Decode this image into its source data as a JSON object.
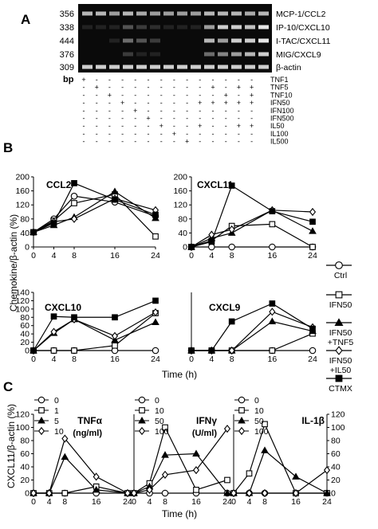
{
  "panelA": {
    "letter": "A",
    "bp_header": "bp",
    "rows": [
      {
        "bp": "356",
        "gene": "MCP-1/CCL2"
      },
      {
        "bp": "338",
        "gene": "IP-10/CXCL10"
      },
      {
        "bp": "444",
        "gene": "I-TAC/CXCL11"
      },
      {
        "bp": "376",
        "gene": "MIG/CXCL9"
      },
      {
        "bp": "309",
        "gene": "β-actin"
      }
    ],
    "treatments": [
      "TNF1",
      "TNF5",
      "TNF10",
      "IFN50",
      "IFN100",
      "IFN500",
      "IL50",
      "IL100",
      "IL500"
    ],
    "matrix": [
      [
        "+",
        "-",
        "-",
        "-",
        "-",
        "-",
        "-",
        "-",
        "-",
        "-",
        "-",
        "-",
        "-",
        "-"
      ],
      [
        "-",
        "+",
        "-",
        "-",
        "-",
        "-",
        "-",
        "-",
        "-",
        "-",
        "+",
        "-",
        "+",
        "+"
      ],
      [
        "-",
        "-",
        "+",
        "-",
        "-",
        "-",
        "-",
        "-",
        "-",
        "-",
        "-",
        "+",
        "-",
        "+"
      ],
      [
        "-",
        "-",
        "-",
        "+",
        "-",
        "-",
        "-",
        "-",
        "-",
        "+",
        "+",
        "+",
        "+",
        "+"
      ],
      [
        "-",
        "-",
        "-",
        "-",
        "+",
        "-",
        "-",
        "-",
        "-",
        "-",
        "-",
        "-",
        "-",
        "-"
      ],
      [
        "-",
        "-",
        "-",
        "-",
        "-",
        "+",
        "-",
        "-",
        "-",
        "-",
        "-",
        "-",
        "-",
        "-"
      ],
      [
        "-",
        "-",
        "-",
        "-",
        "-",
        "-",
        "+",
        "-",
        "-",
        "+",
        "-",
        "-",
        "+",
        "+"
      ],
      [
        "-",
        "-",
        "-",
        "-",
        "-",
        "-",
        "-",
        "+",
        "-",
        "-",
        "-",
        "-",
        "-",
        "-"
      ],
      [
        "-",
        "-",
        "-",
        "-",
        "-",
        "-",
        "-",
        "-",
        "+",
        "-",
        "-",
        "-",
        "-",
        "-"
      ]
    ]
  },
  "panelB": {
    "letter": "B",
    "ylabel": "Chemokine/β-actin (%)",
    "xlabel": "Time (h)",
    "legend": [
      {
        "label": "Ctrl",
        "marker": "circle"
      },
      {
        "label": "IFN50",
        "marker": "square"
      },
      {
        "label": "IFN50 +TNF5",
        "marker": "triangle"
      },
      {
        "label": "IFN50 +IL50",
        "marker": "diamond"
      },
      {
        "label": "CTMX",
        "marker": "filledsquare"
      }
    ]
  },
  "panelC": {
    "letter": "C",
    "ylabel": "CXCL11/β-actin (%)",
    "xlabel": "Time (h)"
  },
  "chart_data": [
    {
      "type": "line",
      "panel": "B",
      "title": "CCL2",
      "x": [
        0,
        4,
        8,
        16,
        24
      ],
      "ylim": [
        0,
        200
      ],
      "yticks": [
        0,
        40,
        80,
        120,
        160,
        200
      ],
      "series": [
        {
          "name": "Ctrl",
          "marker": "circle",
          "values": [
            42,
            80,
            145,
            128,
            88
          ]
        },
        {
          "name": "IFN50",
          "marker": "square",
          "values": [
            42,
            75,
            125,
            150,
            30
          ]
        },
        {
          "name": "IFN50 +TNF5",
          "marker": "triangle",
          "values": [
            42,
            62,
            85,
            158,
            82
          ]
        },
        {
          "name": "IFN50 +IL50",
          "marker": "diamond",
          "values": [
            42,
            72,
            80,
            138,
            105
          ]
        },
        {
          "name": "CTMX",
          "marker": "filledsquare",
          "values": [
            42,
            68,
            182,
            135,
            92
          ]
        }
      ]
    },
    {
      "type": "line",
      "panel": "B",
      "title": "CXCL11",
      "x": [
        0,
        4,
        8,
        16,
        24
      ],
      "ylim": [
        0,
        200
      ],
      "yticks": [
        0,
        40,
        80,
        120,
        160,
        200
      ],
      "series": [
        {
          "name": "Ctrl",
          "marker": "circle",
          "values": [
            0,
            0,
            0,
            0,
            0
          ]
        },
        {
          "name": "IFN50",
          "marker": "square",
          "values": [
            0,
            18,
            60,
            65,
            0
          ]
        },
        {
          "name": "IFN50 +TNF5",
          "marker": "triangle",
          "values": [
            0,
            25,
            40,
            105,
            45
          ]
        },
        {
          "name": "IFN50 +IL50",
          "marker": "diamond",
          "values": [
            0,
            35,
            50,
            105,
            100
          ]
        },
        {
          "name": "CTMX",
          "marker": "filledsquare",
          "values": [
            0,
            15,
            175,
            102,
            72
          ]
        }
      ]
    },
    {
      "type": "line",
      "panel": "B",
      "title": "CXCL10",
      "x": [
        0,
        4,
        8,
        16,
        24
      ],
      "ylim": [
        0,
        140
      ],
      "yticks": [
        0,
        20,
        40,
        60,
        80,
        100,
        120,
        140
      ],
      "series": [
        {
          "name": "Ctrl",
          "marker": "circle",
          "values": [
            0,
            0,
            0,
            0,
            0
          ]
        },
        {
          "name": "IFN50",
          "marker": "square",
          "values": [
            0,
            0,
            0,
            12,
            90
          ]
        },
        {
          "name": "IFN50 +TNF5",
          "marker": "triangle",
          "values": [
            0,
            42,
            75,
            25,
            68
          ]
        },
        {
          "name": "IFN50 +IL50",
          "marker": "diamond",
          "values": [
            0,
            45,
            75,
            35,
            92
          ]
        },
        {
          "name": "CTMX",
          "marker": "filledsquare",
          "values": [
            0,
            82,
            80,
            80,
            120
          ]
        }
      ]
    },
    {
      "type": "line",
      "panel": "B",
      "title": "CXCL9",
      "x": [
        0,
        4,
        8,
        16,
        24
      ],
      "ylim": [
        0,
        120
      ],
      "yticks": [
        0,
        20,
        40,
        60,
        80,
        100,
        120
      ],
      "series": [
        {
          "name": "Ctrl",
          "marker": "circle",
          "values": [
            0,
            0,
            0,
            0,
            0
          ]
        },
        {
          "name": "IFN50",
          "marker": "square",
          "values": [
            0,
            0,
            0,
            0,
            35
          ]
        },
        {
          "name": "IFN50 +TNF5",
          "marker": "triangle",
          "values": [
            0,
            0,
            0,
            60,
            40
          ]
        },
        {
          "name": "IFN50 +IL50",
          "marker": "diamond",
          "values": [
            0,
            0,
            0,
            80,
            48
          ]
        },
        {
          "name": "CTMX",
          "marker": "filledsquare",
          "values": [
            0,
            0,
            60,
            97,
            45
          ]
        }
      ]
    },
    {
      "type": "line",
      "panel": "C",
      "title": "TNFα",
      "subtitle": "(ng/ml)",
      "x": [
        0,
        4,
        8,
        16,
        24
      ],
      "ylim": [
        0,
        120
      ],
      "yticks": [
        0,
        20,
        40,
        60,
        80,
        100,
        120
      ],
      "series": [
        {
          "name": "0",
          "marker": "circle",
          "values": [
            0,
            0,
            0,
            0,
            0
          ]
        },
        {
          "name": "1",
          "marker": "square",
          "values": [
            0,
            0,
            0,
            10,
            0
          ]
        },
        {
          "name": "5",
          "marker": "triangle",
          "values": [
            0,
            0,
            55,
            5,
            0
          ]
        },
        {
          "name": "10",
          "marker": "diamond",
          "values": [
            0,
            0,
            83,
            25,
            0
          ]
        }
      ]
    },
    {
      "type": "line",
      "panel": "C",
      "title": "IFNγ",
      "subtitle": "(U/ml)",
      "x": [
        0,
        4,
        8,
        16,
        24
      ],
      "ylim": [
        0,
        120
      ],
      "yticks": [
        0,
        20,
        40,
        60,
        80,
        100,
        120
      ],
      "series": [
        {
          "name": "0",
          "marker": "circle",
          "values": [
            0,
            0,
            0,
            0,
            0
          ]
        },
        {
          "name": "10",
          "marker": "square",
          "values": [
            0,
            15,
            100,
            5,
            20
          ]
        },
        {
          "name": "50",
          "marker": "triangle",
          "values": [
            0,
            10,
            58,
            60,
            0
          ]
        },
        {
          "name": "100",
          "marker": "diamond",
          "values": [
            0,
            5,
            28,
            35,
            98
          ]
        }
      ]
    },
    {
      "type": "line",
      "panel": "C",
      "title": "IL-1β",
      "subtitle": "",
      "x": [
        0,
        4,
        8,
        16,
        24
      ],
      "ylim": [
        0,
        120
      ],
      "yticks": [
        0,
        20,
        40,
        60,
        80,
        100,
        120
      ],
      "series": [
        {
          "name": "0",
          "marker": "circle",
          "values": [
            0,
            0,
            0,
            0,
            0
          ]
        },
        {
          "name": "10",
          "marker": "square",
          "values": [
            0,
            30,
            105,
            0,
            0
          ]
        },
        {
          "name": "50",
          "marker": "triangle",
          "values": [
            0,
            0,
            65,
            25,
            0
          ]
        },
        {
          "name": "100",
          "marker": "diamond",
          "values": [
            0,
            0,
            0,
            0,
            35
          ]
        }
      ]
    }
  ]
}
